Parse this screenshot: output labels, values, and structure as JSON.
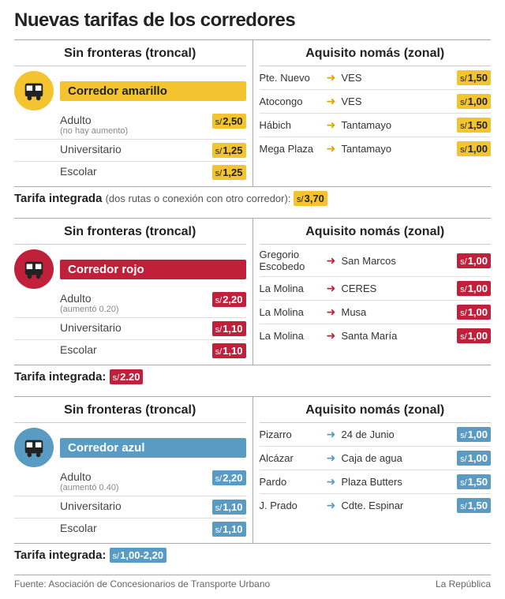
{
  "title": "Nuevas tarifas de los corredores",
  "headers": {
    "troncal": "Sin fronteras (troncal)",
    "zonal": "Aquisito nomás (zonal)"
  },
  "colors": {
    "yellow": {
      "bg": "#f4c430",
      "text": "#222222",
      "arrow": "#e0a400"
    },
    "red": {
      "bg": "#c1203b",
      "text": "#ffffff",
      "arrow": "#c1203b"
    },
    "blue": {
      "bg": "#5a9bc4",
      "text": "#ffffff",
      "arrow": "#5a9bc4"
    }
  },
  "currency": "s/",
  "corridors": [
    {
      "key": "yellow",
      "name": "Corredor amarillo",
      "fares": [
        {
          "label": "Adulto",
          "sub": "(no hay aumento)",
          "price": "2,50"
        },
        {
          "label": "Universitario",
          "price": "1,25"
        },
        {
          "label": "Escolar",
          "price": "1,25"
        }
      ],
      "routes": [
        {
          "from": "Pte. Nuevo",
          "to": "VES",
          "price": "1,50"
        },
        {
          "from": "Atocongo",
          "to": "VES",
          "price": "1,00"
        },
        {
          "from": "Hábich",
          "to": "Tantamayo",
          "price": "1,50"
        },
        {
          "from": "Mega Plaza",
          "to": "Tantamayo",
          "price": "1,00"
        }
      ],
      "integrated": {
        "label": "Tarifa integrada",
        "note": "(dos rutas o conexión con otro corredor):",
        "price": "3,70"
      }
    },
    {
      "key": "red",
      "name": "Corredor rojo",
      "fares": [
        {
          "label": "Adulto",
          "sub": "(aumentó 0.20)",
          "price": "2,20"
        },
        {
          "label": "Universitario",
          "price": "1,10"
        },
        {
          "label": "Escolar",
          "price": "1,10"
        }
      ],
      "routes": [
        {
          "from": "Gregorio Escobedo",
          "to": "San Marcos",
          "price": "1,00"
        },
        {
          "from": "La Molina",
          "to": "CERES",
          "price": "1,00"
        },
        {
          "from": "La Molina",
          "to": "Musa",
          "price": "1,00"
        },
        {
          "from": "La Molina",
          "to": "Santa María",
          "price": "1,00"
        }
      ],
      "integrated": {
        "label": "Tarifa integrada:",
        "note": "",
        "price": "2.20"
      }
    },
    {
      "key": "blue",
      "name": "Corredor azul",
      "fares": [
        {
          "label": "Adulto",
          "sub": "(aumentó 0.40)",
          "price": "2,20"
        },
        {
          "label": "Universitario",
          "price": "1,10"
        },
        {
          "label": "Escolar",
          "price": "1,10"
        }
      ],
      "routes": [
        {
          "from": "Pizarro",
          "to": "24 de Junio",
          "price": "1,00"
        },
        {
          "from": "Alcázar",
          "to": "Caja de agua",
          "price": "1,00"
        },
        {
          "from": "Pardo",
          "to": "Plaza Butters",
          "price": "1,50"
        },
        {
          "from": "J. Prado",
          "to": "Cdte. Espinar",
          "price": "1,50"
        }
      ],
      "integrated": {
        "label": "Tarifa integrada:",
        "note": "",
        "price": "1,00-2,20"
      }
    }
  ],
  "footer": {
    "source": "Fuente: Asociación de Concesionarios de Transporte Urbano",
    "brand": "La República"
  }
}
